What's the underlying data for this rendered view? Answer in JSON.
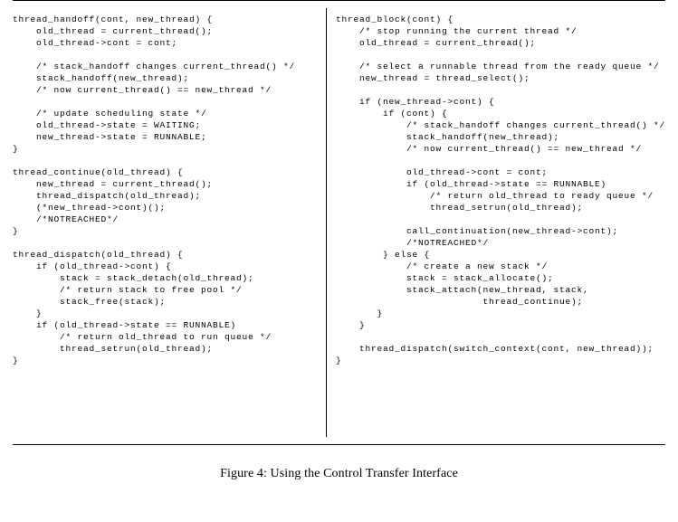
{
  "figure": {
    "caption": "Figure 4: Using the Control Transfer Interface",
    "rule_color": "#000000",
    "background": "#ffffff",
    "font": {
      "code_family": "Courier New, monospace",
      "code_size_pt": 7,
      "caption_family": "Times New Roman, serif",
      "caption_size_pt": 11
    }
  },
  "code": {
    "left": "thread_handoff(cont, new_thread) {\n    old_thread = current_thread();\n    old_thread->cont = cont;\n\n    /* stack_handoff changes current_thread() */\n    stack_handoff(new_thread);\n    /* now current_thread() == new_thread */\n\n    /* update scheduling state */\n    old_thread->state = WAITING;\n    new_thread->state = RUNNABLE;\n}\n\nthread_continue(old_thread) {\n    new_thread = current_thread();\n    thread_dispatch(old_thread);\n    (*new_thread->cont)();\n    /*NOTREACHED*/\n}\n\nthread_dispatch(old_thread) {\n    if (old_thread->cont) {\n        stack = stack_detach(old_thread);\n        /* return stack to free pool */\n        stack_free(stack);\n    }\n    if (old_thread->state == RUNNABLE)\n        /* return old_thread to run queue */\n        thread_setrun(old_thread);\n}",
    "right": "thread_block(cont) {\n    /* stop running the current thread */\n    old_thread = current_thread();\n\n    /* select a runnable thread from the ready queue */\n    new_thread = thread_select();\n\n    if (new_thread->cont) {\n        if (cont) {\n            /* stack_handoff changes current_thread() */\n            stack_handoff(new_thread);\n            /* now current_thread() == new_thread */\n\n            old_thread->cont = cont;\n            if (old_thread->state == RUNNABLE)\n                /* return old_thread to ready queue */\n                thread_setrun(old_thread);\n\n            call_continuation(new_thread->cont);\n            /*NOTREACHED*/\n        } else {\n            /* create a new stack */\n            stack = stack_allocate();\n            stack_attach(new_thread, stack,\n                         thread_continue);\n       }\n    }\n\n    thread_dispatch(switch_context(cont, new_thread));\n}"
  }
}
